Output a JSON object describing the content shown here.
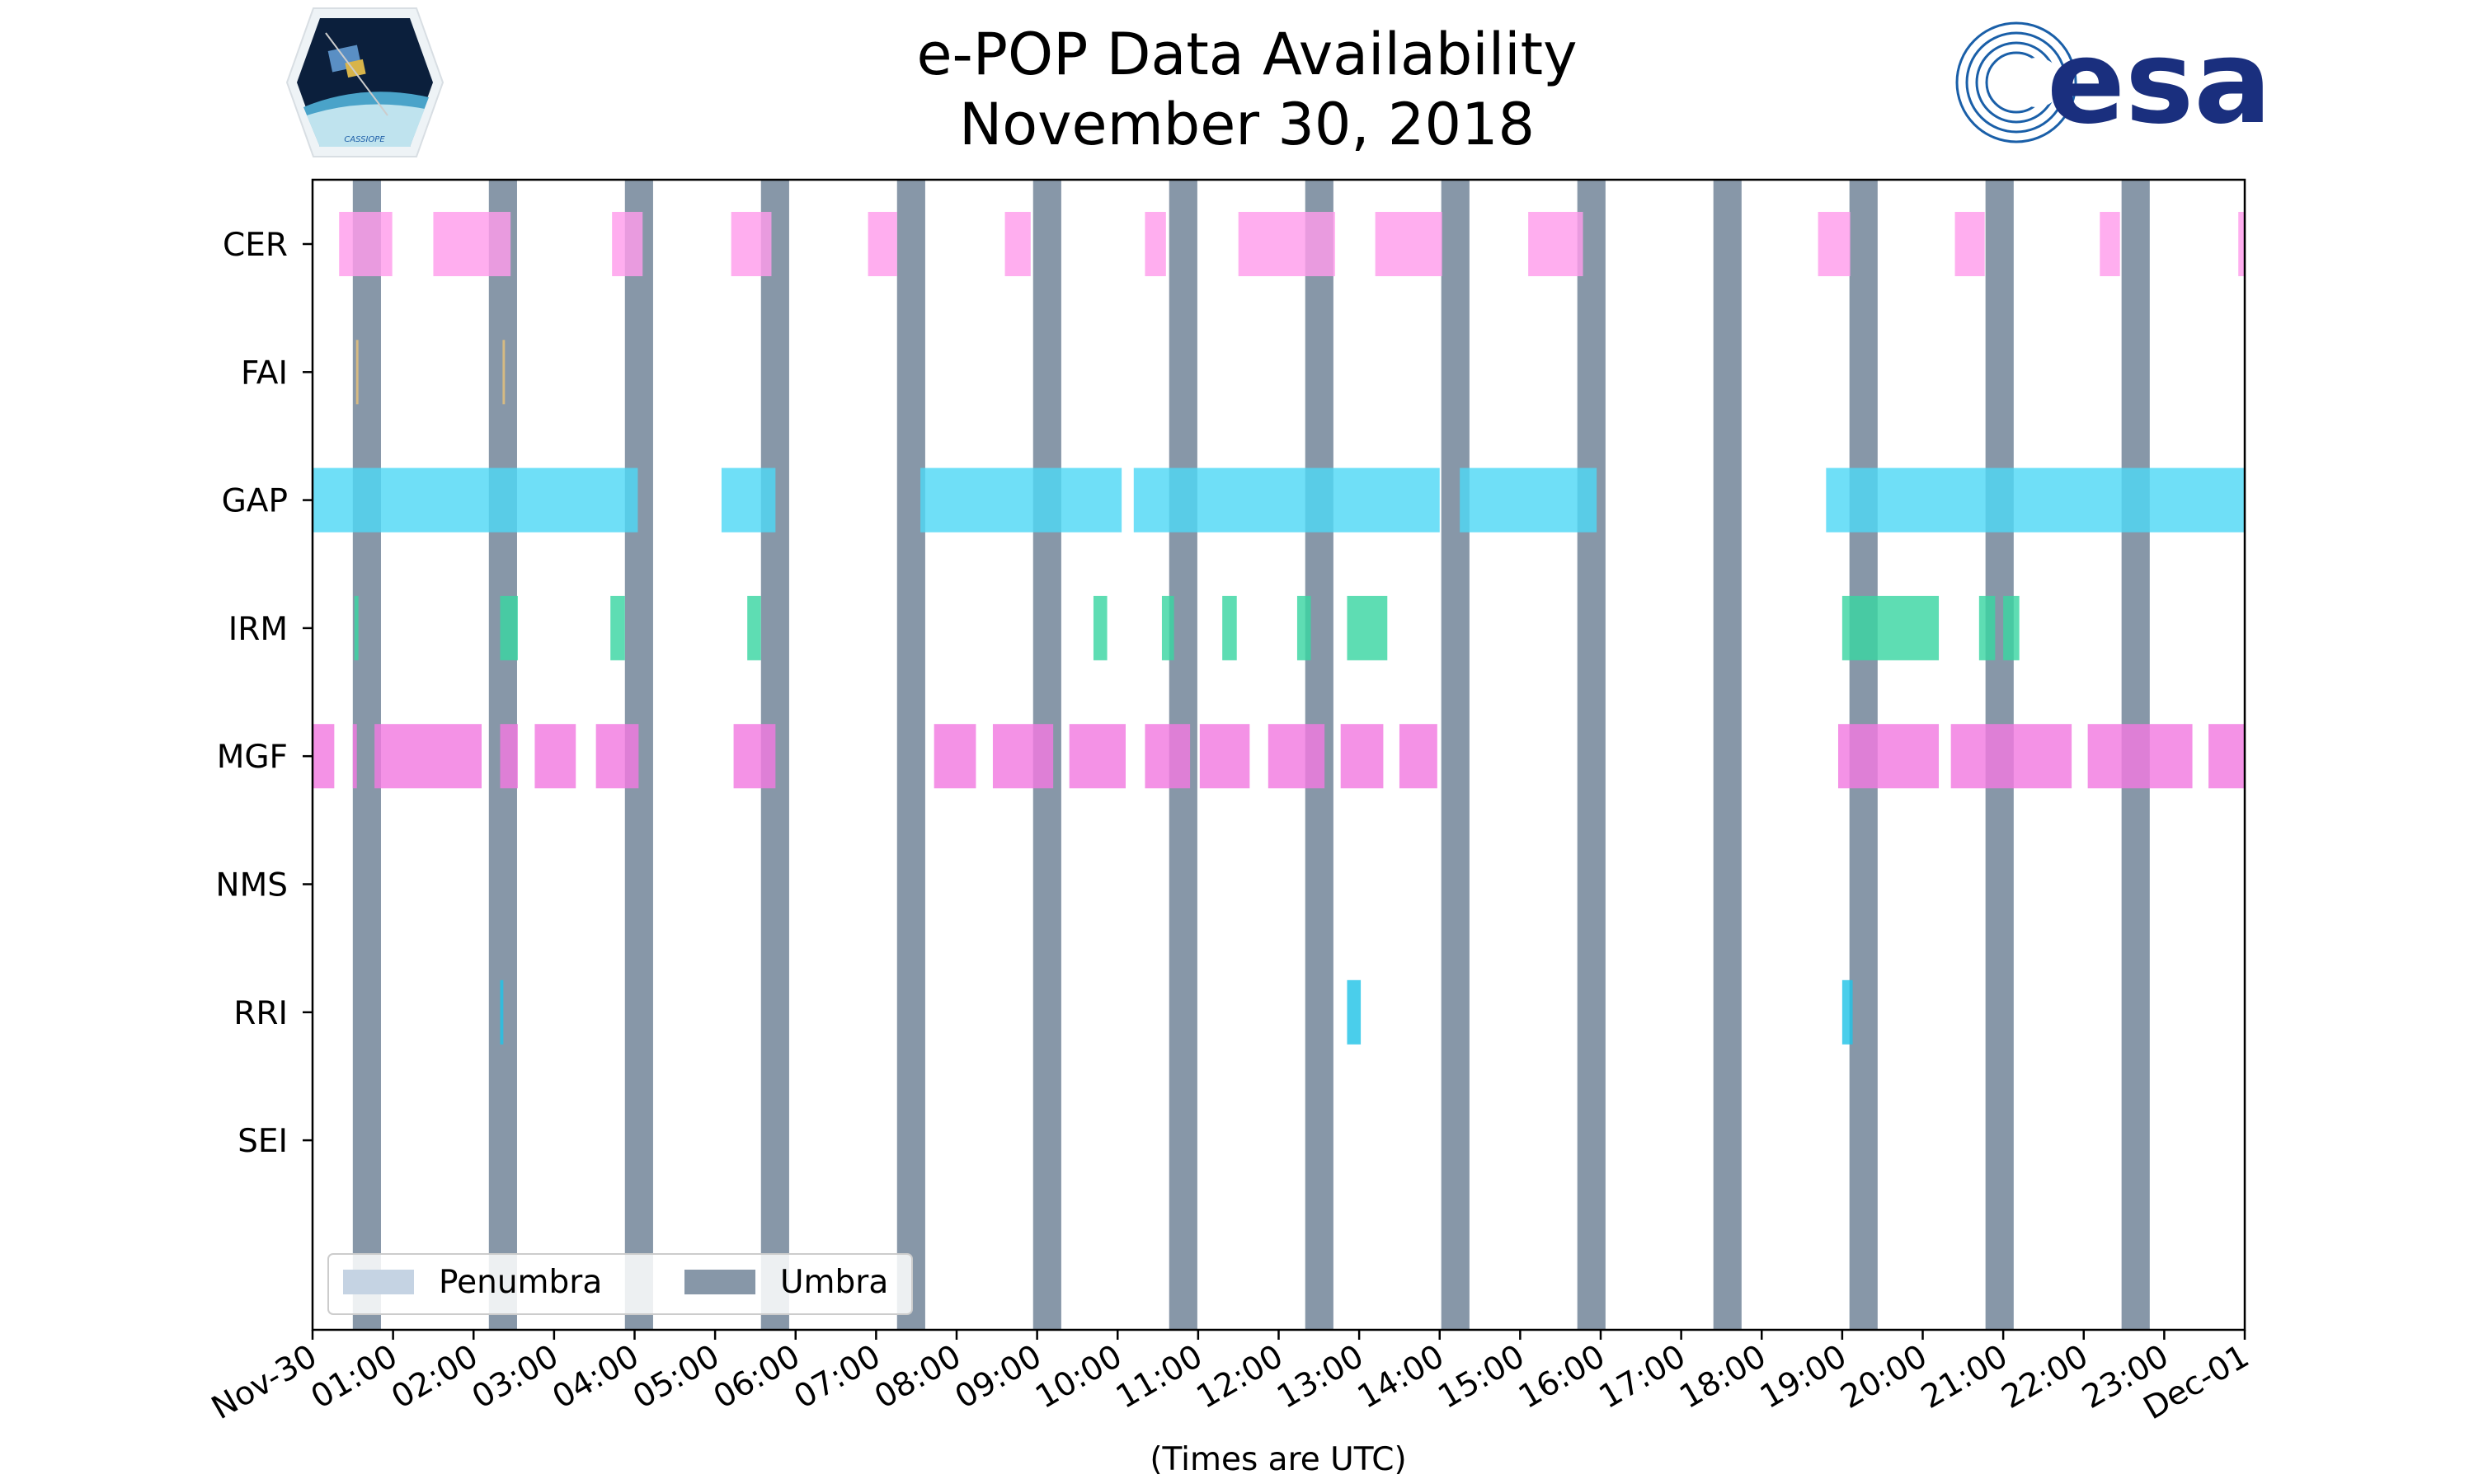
{
  "logos": {
    "left_caption": "CASSIOPE",
    "right_text": "esa"
  },
  "chart_data": {
    "type": "timeline",
    "title_lines": [
      "e-POP Data Availability",
      "November 30, 2018"
    ],
    "xlabel": "(Times are UTC)",
    "xlim_hours": [
      0,
      24
    ],
    "x_tick_labels": [
      "Nov-30",
      "01:00",
      "02:00",
      "03:00",
      "04:00",
      "05:00",
      "06:00",
      "07:00",
      "08:00",
      "09:00",
      "10:00",
      "11:00",
      "12:00",
      "13:00",
      "14:00",
      "15:00",
      "16:00",
      "17:00",
      "18:00",
      "19:00",
      "20:00",
      "21:00",
      "22:00",
      "23:00",
      "Dec-01"
    ],
    "instruments": [
      "CER",
      "FAI",
      "GAP",
      "IRM",
      "MGF",
      "NMS",
      "RRI",
      "SEI"
    ],
    "legend": [
      {
        "label": "Penumbra",
        "color": "#c5d3e3"
      },
      {
        "label": "Umbra",
        "color": "#8797a8"
      }
    ],
    "legend_position": "lower-left",
    "umbra_color": "#8797a8",
    "umbra_intervals_hours": [
      [
        0.5,
        0.85
      ],
      [
        2.19,
        2.54
      ],
      [
        3.88,
        4.23
      ],
      [
        5.57,
        5.92
      ],
      [
        7.26,
        7.61
      ],
      [
        8.95,
        9.3
      ],
      [
        10.64,
        10.99
      ],
      [
        12.33,
        12.68
      ],
      [
        14.02,
        14.37
      ],
      [
        15.71,
        16.06
      ],
      [
        17.4,
        17.75
      ],
      [
        19.09,
        19.44
      ],
      [
        20.78,
        21.13
      ],
      [
        22.47,
        22.82
      ]
    ],
    "penumbra_intervals_hours": [],
    "series": [
      {
        "name": "CER",
        "color": "#ff9cec",
        "intervals_hours": [
          [
            0.33,
            0.99
          ],
          [
            1.5,
            2.46
          ],
          [
            3.72,
            4.1
          ],
          [
            5.2,
            5.7
          ],
          [
            6.9,
            7.26
          ],
          [
            8.6,
            8.92
          ],
          [
            10.34,
            10.6
          ],
          [
            11.5,
            12.7
          ],
          [
            13.2,
            14.03
          ],
          [
            15.1,
            15.78
          ],
          [
            18.7,
            19.1
          ],
          [
            20.4,
            20.77
          ],
          [
            22.2,
            22.45
          ],
          [
            23.92,
            24.0
          ]
        ]
      },
      {
        "name": "FAI",
        "color": "#e8c27a",
        "intervals_hours": [
          [
            0.54,
            0.57
          ],
          [
            2.36,
            2.39
          ]
        ]
      },
      {
        "name": "GAP",
        "color": "#4fd8f5",
        "intervals_hours": [
          [
            0.0,
            4.04
          ],
          [
            5.08,
            5.75
          ],
          [
            7.55,
            10.05
          ],
          [
            10.2,
            14.0
          ],
          [
            14.25,
            15.95
          ],
          [
            18.8,
            24.0
          ]
        ]
      },
      {
        "name": "IRM",
        "color": "#3bd6a2",
        "intervals_hours": [
          [
            0.52,
            0.57
          ],
          [
            2.33,
            2.55
          ],
          [
            3.7,
            3.88
          ],
          [
            5.4,
            5.57
          ],
          [
            9.7,
            9.87
          ],
          [
            10.55,
            10.7
          ],
          [
            11.3,
            11.48
          ],
          [
            12.23,
            12.4
          ],
          [
            12.85,
            13.35
          ],
          [
            19.0,
            20.2
          ],
          [
            20.7,
            20.9
          ],
          [
            21.0,
            21.2
          ]
        ]
      },
      {
        "name": "MGF",
        "color": "#f27ae0",
        "intervals_hours": [
          [
            0.0,
            0.27
          ],
          [
            0.5,
            0.55
          ],
          [
            0.77,
            2.1
          ],
          [
            2.33,
            2.55
          ],
          [
            2.76,
            3.27
          ],
          [
            3.52,
            4.05
          ],
          [
            5.23,
            5.75
          ],
          [
            7.72,
            8.24
          ],
          [
            8.45,
            9.2
          ],
          [
            9.4,
            10.1
          ],
          [
            10.34,
            10.9
          ],
          [
            11.02,
            11.64
          ],
          [
            11.87,
            12.57
          ],
          [
            12.77,
            13.3
          ],
          [
            13.5,
            13.97
          ],
          [
            18.95,
            20.2
          ],
          [
            20.35,
            21.85
          ],
          [
            22.05,
            23.35
          ],
          [
            23.55,
            24.0
          ]
        ]
      },
      {
        "name": "NMS",
        "color": "#999999",
        "intervals_hours": []
      },
      {
        "name": "RRI",
        "color": "#22c3e6",
        "intervals_hours": [
          [
            2.33,
            2.37
          ],
          [
            12.85,
            13.02
          ],
          [
            19.0,
            19.13
          ]
        ]
      },
      {
        "name": "SEI",
        "color": "#999999",
        "intervals_hours": []
      }
    ]
  }
}
